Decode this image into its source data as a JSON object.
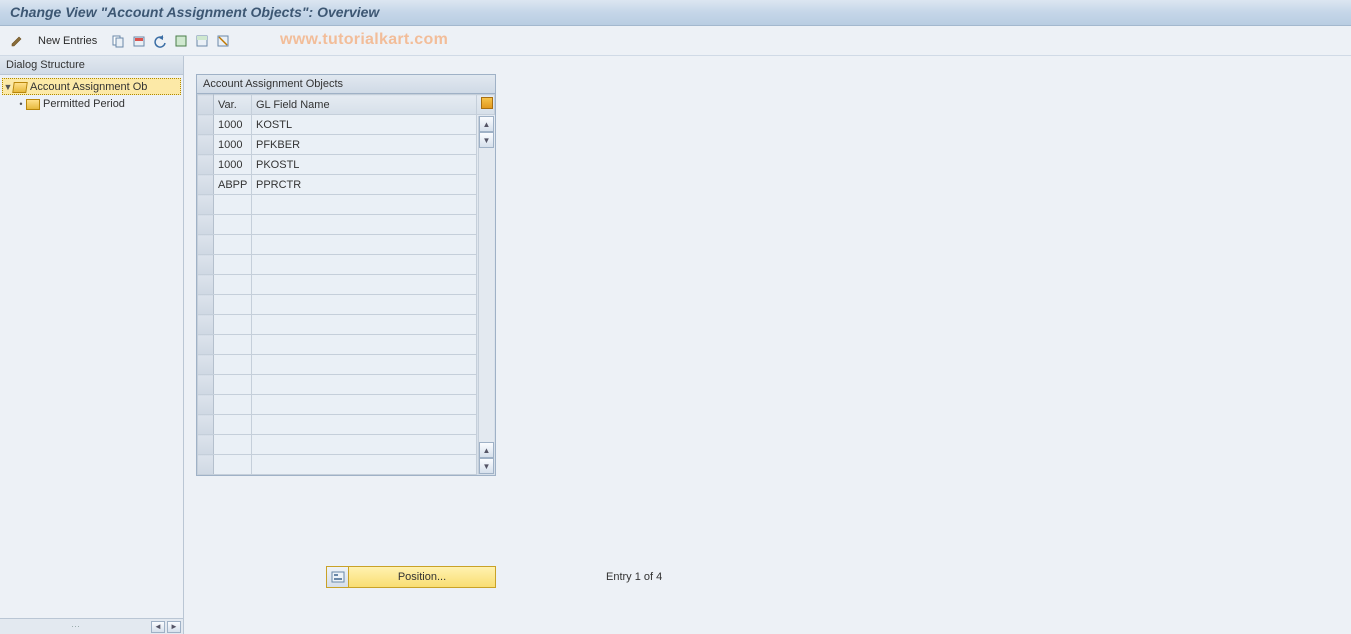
{
  "title": "Change View \"Account Assignment Objects\": Overview",
  "toolbar": {
    "new_entries_label": "New Entries"
  },
  "watermark": "www.tutorialkart.com",
  "sidebar": {
    "header": "Dialog Structure",
    "nodes": [
      {
        "label": "Account Assignment Ob",
        "level": 0,
        "expanded": true,
        "selected": true,
        "icon": "open"
      },
      {
        "label": "Permitted Period",
        "level": 1,
        "expanded": false,
        "selected": false,
        "icon": "closed"
      }
    ]
  },
  "table": {
    "title": "Account Assignment Objects",
    "columns": {
      "var": "Var.",
      "gl": "GL Field Name"
    },
    "rows": [
      {
        "var": "1000",
        "gl": "KOSTL"
      },
      {
        "var": "1000",
        "gl": "PFKBER"
      },
      {
        "var": "1000",
        "gl": "PKOSTL"
      },
      {
        "var": "ABPP",
        "gl": "PPRCTR"
      }
    ],
    "empty_rows": 14,
    "colors": {
      "header_bg_top": "#e5ebf2",
      "header_bg_bottom": "#d6dfe9",
      "cell_bg": "#eaf0f6",
      "border": "#c5cfda"
    }
  },
  "footer": {
    "position_label": "Position...",
    "entry_status": "Entry 1 of 4"
  },
  "colors": {
    "page_bg": "#edf1f6",
    "title_text": "#3d5773",
    "watermark": "#f4b183",
    "selected_bg": "#fce9a7"
  }
}
